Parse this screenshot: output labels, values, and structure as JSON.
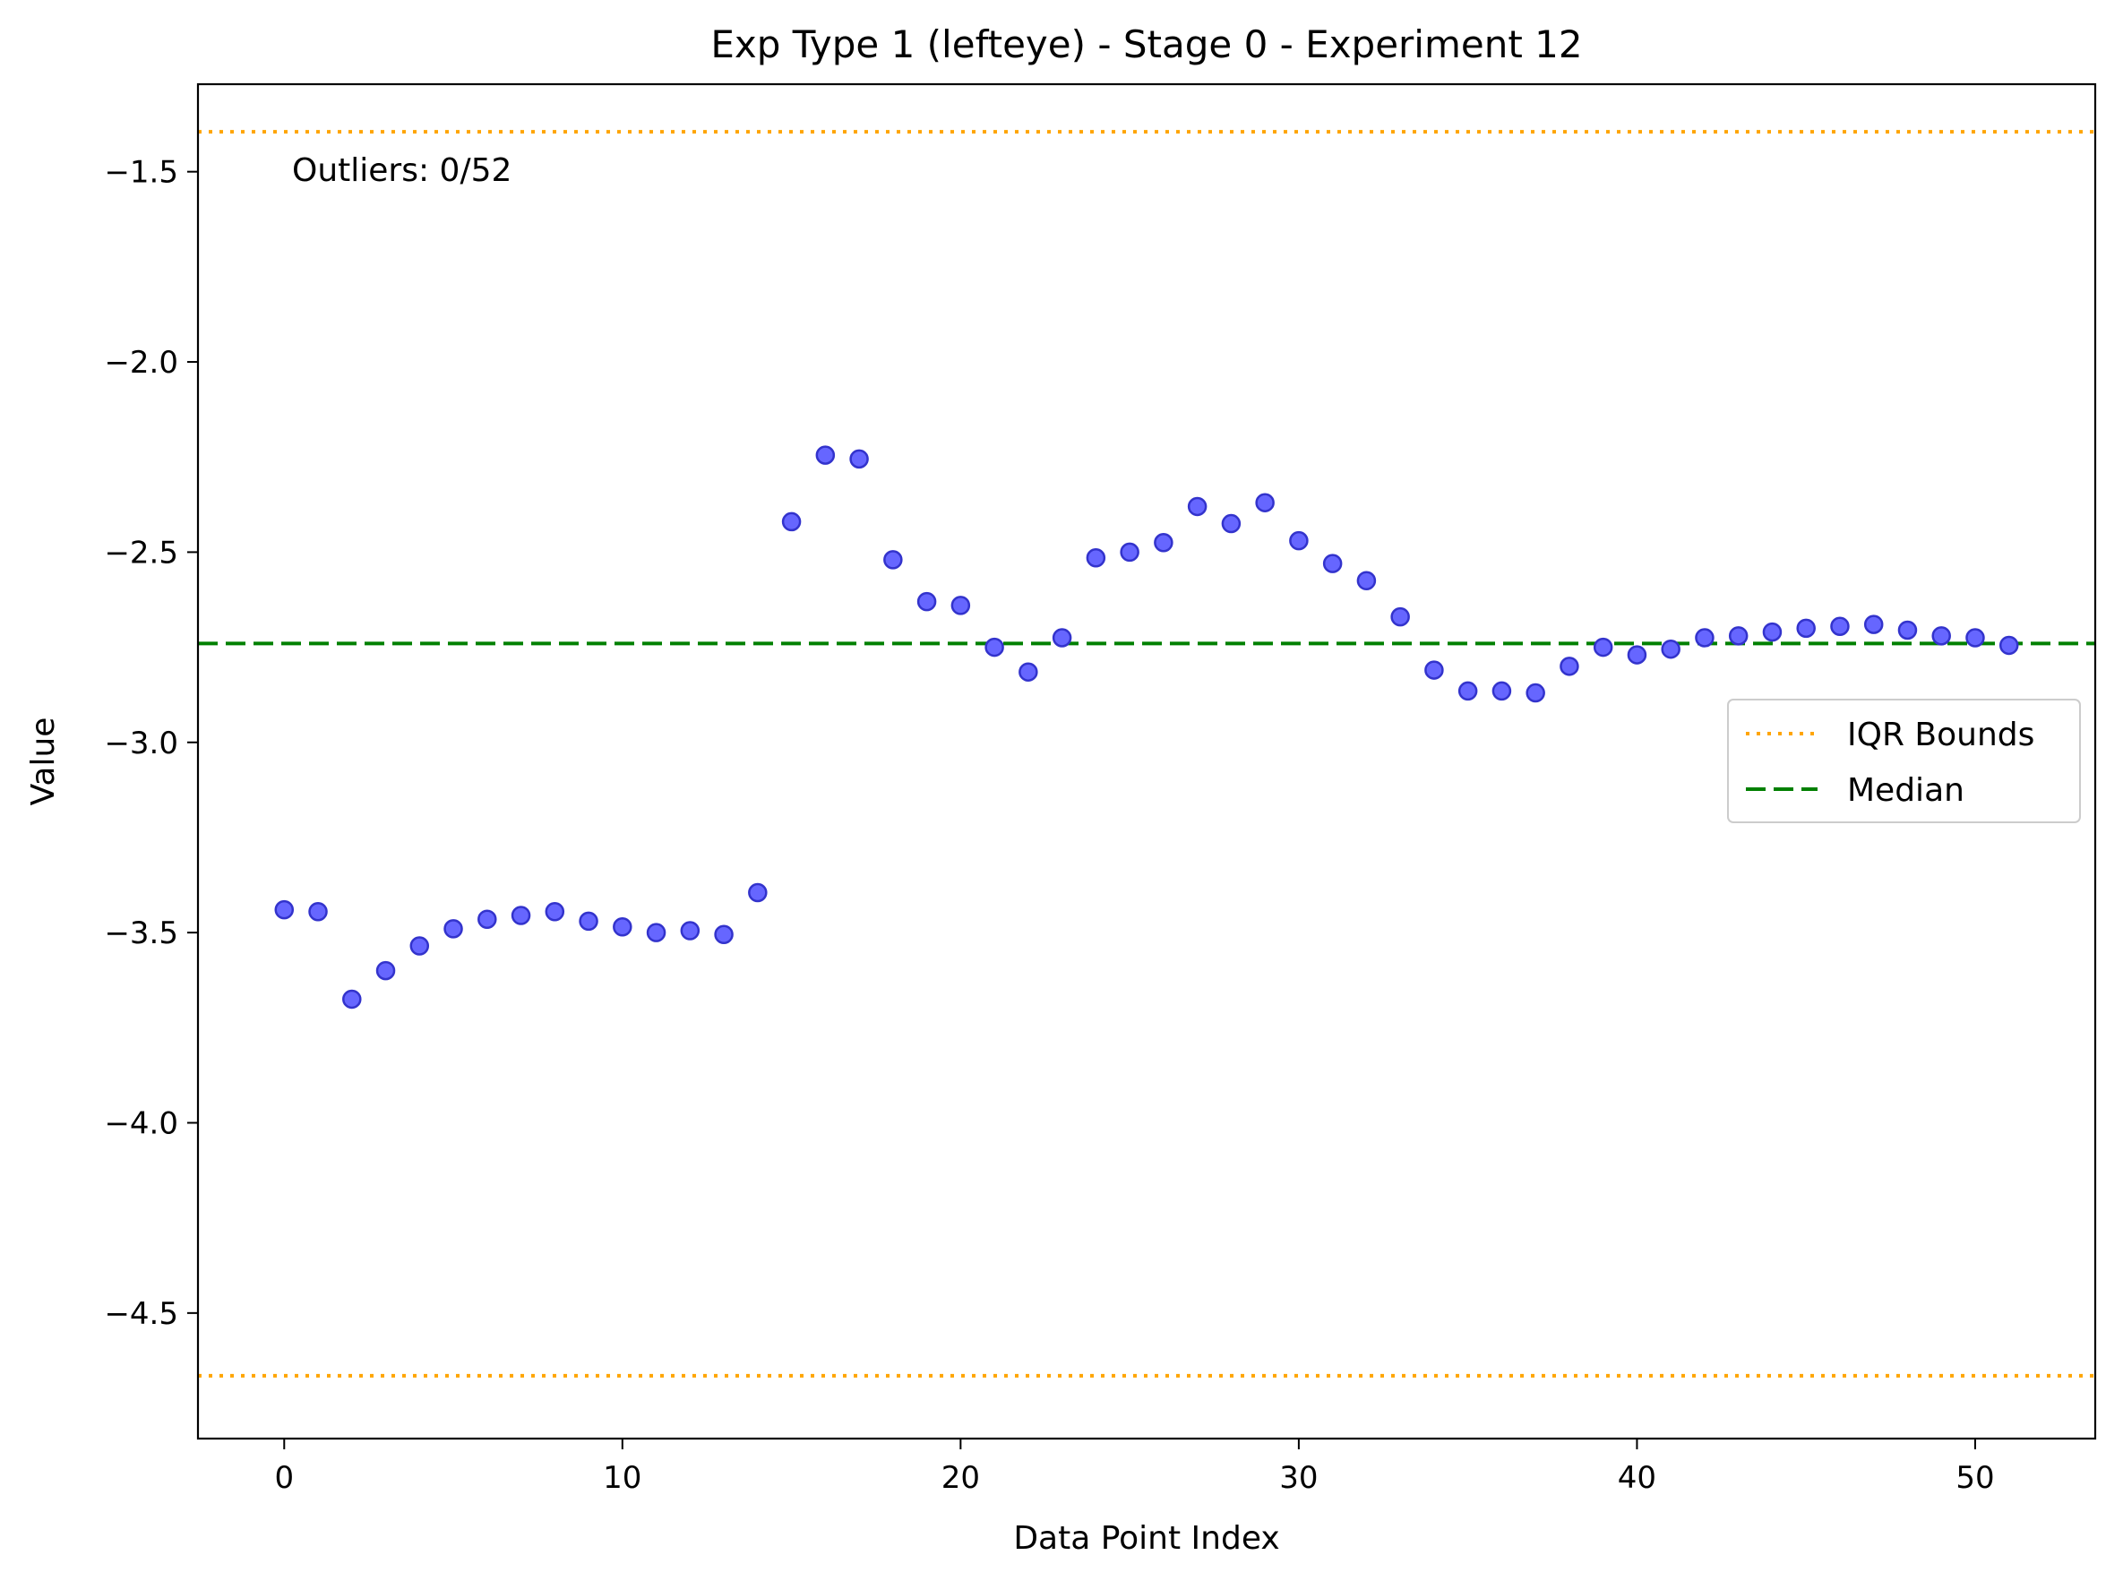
{
  "chart_data": {
    "type": "scatter",
    "title": "Exp Type 1 (lefteye) - Stage 0 - Experiment 12",
    "xlabel": "Data Point Index",
    "ylabel": "Value",
    "xlim": [
      -2.55,
      53.55
    ],
    "ylim": [
      -4.83,
      -1.27
    ],
    "xticks": [
      0,
      10,
      20,
      30,
      40,
      50
    ],
    "xtick_labels": [
      "0",
      "10",
      "20",
      "30",
      "40",
      "50"
    ],
    "yticks": [
      -4.5,
      -4.0,
      -3.5,
      -3.0,
      -2.5,
      -2.0,
      -1.5
    ],
    "ytick_labels": [
      "−4.5",
      "−4.0",
      "−3.5",
      "−3.0",
      "−2.5",
      "−2.0",
      "−1.5"
    ],
    "grid": false,
    "legend_position": "center-right",
    "annotation": "Outliers: 0/52",
    "series": [
      {
        "marker_color": "#6666ff",
        "marker_edge_color": "#3333cc",
        "x": [
          0,
          1,
          2,
          3,
          4,
          5,
          6,
          7,
          8,
          9,
          10,
          11,
          12,
          13,
          14,
          15,
          16,
          17,
          18,
          19,
          20,
          21,
          22,
          23,
          24,
          25,
          26,
          27,
          28,
          29,
          30,
          31,
          32,
          33,
          34,
          35,
          36,
          37,
          38,
          39,
          40,
          41,
          42,
          43,
          44,
          45,
          46,
          47,
          48,
          49,
          50,
          51
        ],
        "y": [
          -3.44,
          -3.445,
          -3.675,
          -3.6,
          -3.535,
          -3.49,
          -3.465,
          -3.455,
          -3.445,
          -3.47,
          -3.485,
          -3.5,
          -3.495,
          -3.505,
          -3.395,
          -2.42,
          -2.245,
          -2.255,
          -2.52,
          -2.63,
          -2.64,
          -2.75,
          -2.815,
          -2.725,
          -2.515,
          -2.5,
          -2.475,
          -2.38,
          -2.425,
          -2.37,
          -2.47,
          -2.53,
          -2.575,
          -2.67,
          -2.81,
          -2.865,
          -2.865,
          -2.87,
          -2.8,
          -2.75,
          -2.77,
          -2.755,
          -2.725,
          -2.72,
          -2.71,
          -2.7,
          -2.695,
          -2.69,
          -2.705,
          -2.72,
          -2.725,
          -2.745
        ]
      }
    ],
    "lines": [
      {
        "name": "IQR Bounds",
        "y": -1.395,
        "style": "dotted",
        "color": "#ffa500"
      },
      {
        "name": "",
        "y": -4.665,
        "style": "dotted",
        "color": "#ffa500"
      },
      {
        "name": "Median",
        "y": -2.74,
        "style": "dashed",
        "color": "#008000"
      }
    ],
    "legend": [
      {
        "label": "IQR Bounds",
        "style": "dotted",
        "color": "#ffa500"
      },
      {
        "label": "Median",
        "style": "dashed",
        "color": "#008000"
      }
    ]
  }
}
